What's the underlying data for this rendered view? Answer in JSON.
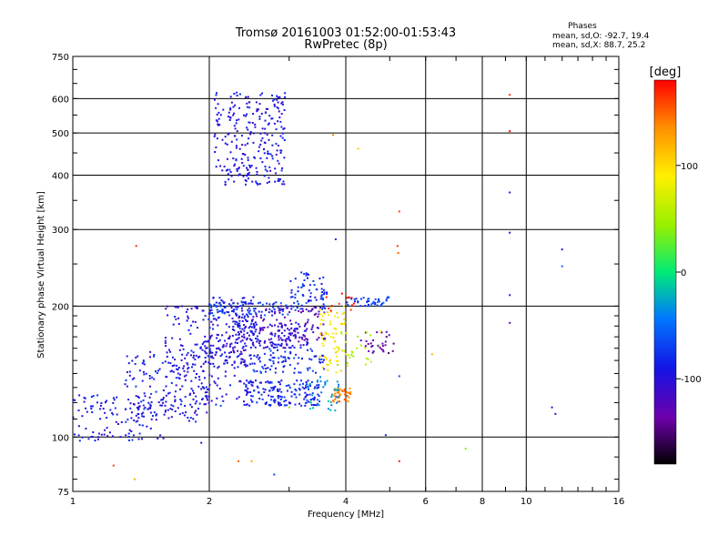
{
  "chart_data": {
    "type": "scatter",
    "title": "Tromsø 20161003 01:52:00-01:53:43",
    "subtitle": "RwPretec (8p)",
    "xlabel": "Frequency [MHz]",
    "ylabel": "Stationary phase Virtual Height [km]",
    "x_scale": "log",
    "y_scale": "log",
    "xlim": [
      1,
      16
    ],
    "ylim": [
      75,
      750
    ],
    "x_ticks": [
      1,
      2,
      4,
      6,
      8,
      10,
      16
    ],
    "y_ticks": [
      75,
      100,
      200,
      300,
      400,
      500,
      600,
      750
    ],
    "x_gridlines": [
      2,
      4,
      6,
      8,
      10
    ],
    "y_gridlines": [
      100,
      200,
      300,
      400,
      500,
      600
    ],
    "grid": true,
    "stats": {
      "title": "Phases",
      "line_o": "mean, sd,O: -92.7, 19.4",
      "line_x": "mean, sd,X:  88.7, 25.2"
    },
    "colorbar": {
      "label": "[deg]",
      "range": [
        -180,
        180
      ],
      "ticks": [
        100,
        0,
        -100
      ],
      "placement": "right"
    },
    "clusters": [
      {
        "f": [
          2.05,
          2.95
        ],
        "h": [
          380,
          620
        ],
        "phase": -95,
        "count": 260
      },
      {
        "f": [
          1.0,
          1.6
        ],
        "h": [
          98,
          125
        ],
        "phase": -92,
        "count": 110
      },
      {
        "f": [
          1.3,
          2.0
        ],
        "h": [
          108,
          160
        ],
        "phase": -92,
        "count": 160
      },
      {
        "f": [
          1.6,
          2.4
        ],
        "h": [
          118,
          200
        ],
        "phase": -95,
        "count": 220
      },
      {
        "f": [
          2.0,
          2.6
        ],
        "h": [
          145,
          210
        ],
        "phase": -100,
        "count": 150
      },
      {
        "f": [
          2.4,
          3.5
        ],
        "h": [
          118,
          135
        ],
        "phase": -85,
        "count": 170
      },
      {
        "f": [
          2.3,
          3.3
        ],
        "h": [
          160,
          185
        ],
        "phase": -100,
        "count": 130
      },
      {
        "f": [
          2.6,
          3.6
        ],
        "h": [
          165,
          200
        ],
        "phase": -120,
        "count": 90
      },
      {
        "f": [
          2.0,
          3.0
        ],
        "h": [
          190,
          205
        ],
        "phase": -70,
        "count": 70
      },
      {
        "f": [
          2.5,
          3.6
        ],
        "h": [
          140,
          160
        ],
        "phase": -80,
        "count": 80
      },
      {
        "f": [
          3.0,
          3.7
        ],
        "h": [
          195,
          240
        ],
        "phase": -80,
        "count": 70
      },
      {
        "f": [
          3.5,
          4.0
        ],
        "h": [
          140,
          200
        ],
        "phase": 95,
        "count": 70
      },
      {
        "f": [
          3.7,
          4.1
        ],
        "h": [
          120,
          130
        ],
        "phase": 140,
        "count": 40
      },
      {
        "f": [
          3.3,
          3.9
        ],
        "h": [
          115,
          140
        ],
        "phase": -30,
        "count": 40
      },
      {
        "f": [
          4.0,
          5.0
        ],
        "h": [
          200,
          210
        ],
        "phase": -70,
        "count": 40
      },
      {
        "f": [
          4.3,
          5.1
        ],
        "h": [
          155,
          175
        ],
        "phase": -135,
        "count": 30
      },
      {
        "f": [
          3.8,
          4.8
        ],
        "h": [
          145,
          175
        ],
        "phase": 60,
        "count": 25
      },
      {
        "f": [
          3.6,
          4.2
        ],
        "h": [
          195,
          215
        ],
        "phase": 175,
        "count": 12
      }
    ],
    "outliers": [
      {
        "f": 1.38,
        "h": 275,
        "phase": 165
      },
      {
        "f": 1.23,
        "h": 86,
        "phase": 160
      },
      {
        "f": 1.37,
        "h": 80,
        "phase": 120
      },
      {
        "f": 2.32,
        "h": 88,
        "phase": 150
      },
      {
        "f": 2.48,
        "h": 88,
        "phase": 120
      },
      {
        "f": 2.78,
        "h": 82,
        "phase": -70
      },
      {
        "f": 1.92,
        "h": 97,
        "phase": -100
      },
      {
        "f": 2.12,
        "h": 118,
        "phase": -60
      },
      {
        "f": 4.26,
        "h": 460,
        "phase": 110
      },
      {
        "f": 3.75,
        "h": 495,
        "phase": 140
      },
      {
        "f": 3.8,
        "h": 285,
        "phase": -80
      },
      {
        "f": 5.25,
        "h": 330,
        "phase": 160
      },
      {
        "f": 5.2,
        "h": 275,
        "phase": 165
      },
      {
        "f": 5.22,
        "h": 265,
        "phase": 150
      },
      {
        "f": 5.25,
        "h": 138,
        "phase": -60
      },
      {
        "f": 5.25,
        "h": 88,
        "phase": 170
      },
      {
        "f": 6.2,
        "h": 155,
        "phase": 120
      },
      {
        "f": 7.35,
        "h": 94,
        "phase": 40
      },
      {
        "f": 9.2,
        "h": 612,
        "phase": 165
      },
      {
        "f": 9.2,
        "h": 505,
        "phase": 175
      },
      {
        "f": 9.2,
        "h": 365,
        "phase": -95
      },
      {
        "f": 9.2,
        "h": 295,
        "phase": -100
      },
      {
        "f": 9.2,
        "h": 212,
        "phase": -100
      },
      {
        "f": 9.2,
        "h": 183,
        "phase": -130
      },
      {
        "f": 12.0,
        "h": 270,
        "phase": -100
      },
      {
        "f": 12.0,
        "h": 247,
        "phase": -50
      },
      {
        "f": 11.4,
        "h": 117,
        "phase": -110
      },
      {
        "f": 11.6,
        "h": 113,
        "phase": -100
      },
      {
        "f": 4.9,
        "h": 101,
        "phase": -80
      },
      {
        "f": 3.0,
        "h": 117,
        "phase": 40
      }
    ]
  }
}
